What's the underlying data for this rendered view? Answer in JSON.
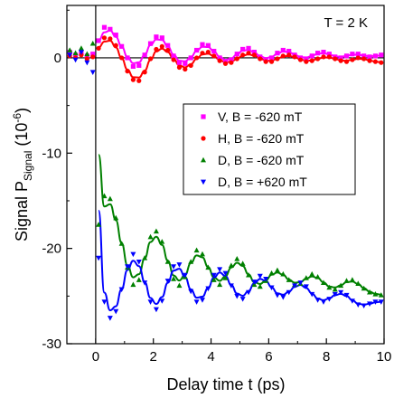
{
  "chart_data": {
    "type": "scatter",
    "xlabel": "Delay time t (ps)",
    "ylabel_main": "Signal P",
    "ylabel_sub": "Signal",
    "ylabel_unit": " (10",
    "ylabel_exp": "-6",
    "ylabel_close": ")",
    "annotation": "T = 2 K",
    "xlim": [
      -1,
      10
    ],
    "ylim": [
      -30,
      5.5
    ],
    "xticks": [
      "0",
      "2",
      "4",
      "6",
      "8",
      "10"
    ],
    "yticks": [
      "0",
      "-10",
      "-20",
      "-30"
    ],
    "series": [
      {
        "name": "V, B = -620 mT",
        "color": "#ff00ff",
        "marker": "square",
        "x": [
          -0.9,
          -0.7,
          -0.5,
          -0.3,
          -0.1,
          0.1,
          0.3,
          0.5,
          0.7,
          0.9,
          1.1,
          1.3,
          1.5,
          1.7,
          1.9,
          2.1,
          2.3,
          2.5,
          2.7,
          2.9,
          3.1,
          3.3,
          3.5,
          3.7,
          3.9,
          4.1,
          4.3,
          4.5,
          4.7,
          4.9,
          5.1,
          5.3,
          5.5,
          5.7,
          5.9,
          6.1,
          6.3,
          6.5,
          6.7,
          6.9,
          7.1,
          7.3,
          7.5,
          7.7,
          7.9,
          8.1,
          8.3,
          8.5,
          8.7,
          8.9,
          9.1,
          9.3,
          9.5,
          9.7,
          9.9
        ],
        "y": [
          0.6,
          0.3,
          0.5,
          0.2,
          0.4,
          1.8,
          3.2,
          3.0,
          2.4,
          1.2,
          0.0,
          -0.9,
          -0.8,
          0.3,
          1.5,
          2.2,
          2.1,
          1.3,
          0.2,
          -0.5,
          -0.6,
          0.0,
          0.8,
          1.4,
          1.3,
          0.7,
          0.0,
          -0.4,
          -0.2,
          0.4,
          0.9,
          1.0,
          0.6,
          0.1,
          -0.2,
          0.0,
          0.5,
          0.8,
          0.7,
          0.3,
          0.0,
          -0.1,
          0.2,
          0.5,
          0.6,
          0.4,
          0.1,
          0.0,
          0.2,
          0.4,
          0.4,
          0.2,
          0.1,
          0.2,
          0.3
        ]
      },
      {
        "name": "H, B = -620 mT",
        "color": "#ff0000",
        "marker": "circle",
        "x": [
          -0.9,
          -0.7,
          -0.5,
          -0.3,
          -0.1,
          0.1,
          0.3,
          0.5,
          0.7,
          0.9,
          1.1,
          1.3,
          1.5,
          1.7,
          1.9,
          2.1,
          2.3,
          2.5,
          2.7,
          2.9,
          3.1,
          3.3,
          3.5,
          3.7,
          3.9,
          4.1,
          4.3,
          4.5,
          4.7,
          4.9,
          5.1,
          5.3,
          5.5,
          5.7,
          5.9,
          6.1,
          6.3,
          6.5,
          6.7,
          6.9,
          7.1,
          7.3,
          7.5,
          7.7,
          7.9,
          8.1,
          8.3,
          8.5,
          8.7,
          8.9,
          9.1,
          9.3,
          9.5,
          9.7,
          9.9
        ],
        "y": [
          0.2,
          0.0,
          0.3,
          -0.1,
          0.1,
          1.0,
          2.1,
          2.0,
          1.3,
          0.0,
          -1.4,
          -2.3,
          -2.4,
          -1.5,
          -0.1,
          0.9,
          1.2,
          0.8,
          -0.2,
          -1.0,
          -1.2,
          -0.8,
          0.0,
          0.5,
          0.6,
          0.2,
          -0.3,
          -0.6,
          -0.5,
          -0.1,
          0.3,
          0.5,
          0.3,
          -0.1,
          -0.4,
          -0.4,
          -0.1,
          0.2,
          0.3,
          0.1,
          -0.2,
          -0.4,
          -0.3,
          -0.1,
          0.1,
          0.1,
          -0.1,
          -0.3,
          -0.4,
          -0.2,
          0.0,
          -0.1,
          -0.3,
          -0.4,
          -0.5
        ]
      },
      {
        "name": "D, B = -620 mT",
        "color": "#008000",
        "marker": "triangle-up",
        "x": [
          -0.9,
          -0.7,
          -0.5,
          -0.3,
          -0.1,
          0.1,
          0.3,
          0.5,
          0.7,
          0.9,
          1.1,
          1.3,
          1.5,
          1.7,
          1.9,
          2.1,
          2.3,
          2.5,
          2.7,
          2.9,
          3.1,
          3.3,
          3.5,
          3.7,
          3.9,
          4.1,
          4.3,
          4.5,
          4.7,
          4.9,
          5.1,
          5.3,
          5.5,
          5.7,
          5.9,
          6.1,
          6.3,
          6.5,
          6.7,
          6.9,
          7.1,
          7.3,
          7.5,
          7.7,
          7.9,
          8.1,
          8.3,
          8.5,
          8.7,
          8.9,
          9.1,
          9.3,
          9.5,
          9.7,
          9.9
        ],
        "y": [
          0.8,
          0.5,
          1.0,
          0.4,
          1.5,
          -17.5,
          -14.5,
          -14.8,
          -16.8,
          -19.5,
          -22.0,
          -23.8,
          -23.3,
          -21.0,
          -18.8,
          -18.2,
          -19.3,
          -21.4,
          -23.2,
          -23.9,
          -23.0,
          -21.4,
          -20.2,
          -20.6,
          -22.0,
          -23.3,
          -23.8,
          -23.1,
          -21.8,
          -21.1,
          -21.6,
          -22.8,
          -23.8,
          -24.0,
          -23.4,
          -22.6,
          -22.3,
          -22.7,
          -23.3,
          -23.8,
          -23.7,
          -23.1,
          -22.7,
          -23.0,
          -23.6,
          -24.1,
          -24.3,
          -23.9,
          -23.4,
          -23.3,
          -23.7,
          -24.2,
          -24.6,
          -24.8,
          -24.9
        ]
      },
      {
        "name": "D, B = +620 mT",
        "color": "#0000ff",
        "marker": "triangle-down",
        "x": [
          -0.9,
          -0.7,
          -0.5,
          -0.3,
          -0.1,
          0.1,
          0.3,
          0.5,
          0.7,
          0.9,
          1.1,
          1.3,
          1.5,
          1.7,
          1.9,
          2.1,
          2.3,
          2.5,
          2.7,
          2.9,
          3.1,
          3.3,
          3.5,
          3.7,
          3.9,
          4.1,
          4.3,
          4.5,
          4.7,
          4.9,
          5.1,
          5.3,
          5.5,
          5.7,
          5.9,
          6.1,
          6.3,
          6.5,
          6.7,
          6.9,
          7.1,
          7.3,
          7.5,
          7.7,
          7.9,
          8.1,
          8.3,
          8.5,
          8.7,
          8.9,
          9.1,
          9.3,
          9.5,
          9.7,
          9.9
        ],
        "y": [
          0.3,
          -0.2,
          0.6,
          -0.5,
          -1.5,
          -21.0,
          -25.6,
          -27.3,
          -26.6,
          -24.3,
          -21.9,
          -20.6,
          -21.4,
          -23.6,
          -25.6,
          -26.4,
          -25.5,
          -23.4,
          -21.9,
          -21.7,
          -22.8,
          -24.5,
          -25.6,
          -25.4,
          -24.2,
          -22.8,
          -22.2,
          -22.6,
          -23.9,
          -25.0,
          -25.3,
          -24.6,
          -23.5,
          -22.9,
          -23.2,
          -24.1,
          -24.9,
          -25.1,
          -24.6,
          -23.9,
          -23.6,
          -24.0,
          -24.8,
          -25.4,
          -25.6,
          -25.3,
          -24.8,
          -24.6,
          -24.9,
          -25.5,
          -25.9,
          -26.0,
          -25.8,
          -25.6,
          -25.6
        ]
      }
    ]
  }
}
